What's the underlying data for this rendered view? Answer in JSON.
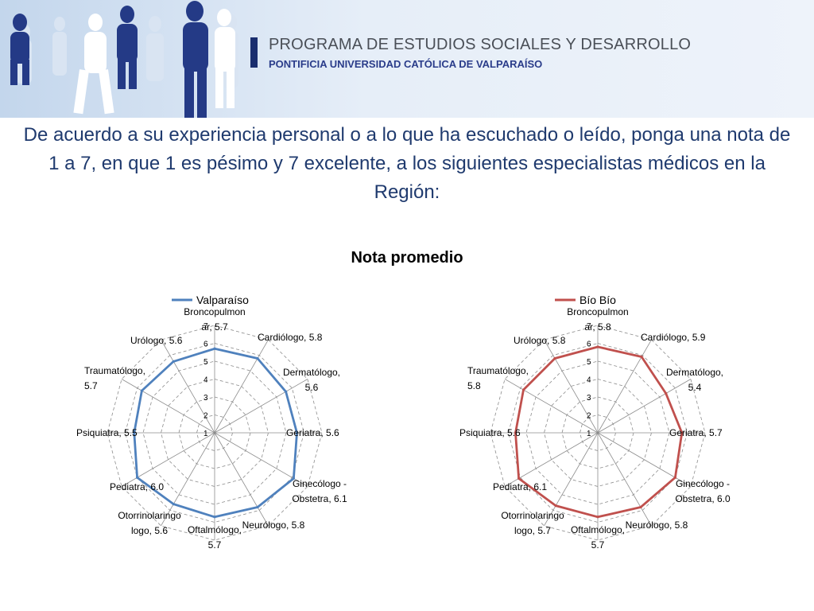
{
  "header": {
    "org_line1": "PROGRAMA DE ESTUDIOS SOCIALES Y DESARROLLO",
    "org_line2": "PONTIFICIA UNIVERSIDAD CATÓLICA DE VALPARAÍSO"
  },
  "question": "De acuerdo a su experiencia personal o a lo que ha escuchado o leído, ponga una nota de 1 a 7, en que 1 es pésimo y 7 excelente, a los siguientes especialistas médicos en la Región:",
  "chart_title": "Nota promedio",
  "chart_data": [
    {
      "type": "radar",
      "series": [
        {
          "name": "Valparaíso",
          "color": "#4f81bd",
          "values": [
            5.7,
            5.8,
            5.6,
            5.6,
            6.1,
            5.8,
            5.7,
            5.6,
            6.0,
            5.5,
            5.7,
            5.6
          ]
        }
      ],
      "categories": [
        "Broncopulmonar",
        "Cardiólogo",
        "Dermatólogo",
        "Geriatra",
        "Ginecólogo - Obstetra",
        "Neurólogo",
        "Oftalmólogo",
        "Otorrinolaringologo",
        "Pediatra",
        "Psiquiatra",
        "Traumatólogo",
        "Urólogo"
      ],
      "data_labels": [
        [
          "Broncopulmon",
          "ar, 5.7"
        ],
        [
          "Cardiólogo, 5.8"
        ],
        [
          "Dermatólogo,",
          "5.6"
        ],
        [
          "Geriatra, 5.6"
        ],
        [
          "Ginecólogo -",
          "Obstetra, 6.1"
        ],
        [
          "Neurólogo, 5.8"
        ],
        [
          "Oftalmólogo,",
          "5.7"
        ],
        [
          "Otorrinolaringo",
          "logo, 5.6"
        ],
        [
          "Pediatra, 6.0"
        ],
        [
          "Psiquiatra, 5.5"
        ],
        [
          "Traumatólogo,",
          "5.7"
        ],
        [
          "Urólogo, 5.6"
        ]
      ],
      "ticks": [
        "1",
        "2",
        "3",
        "4",
        "5",
        "6",
        "7"
      ],
      "rmin": 1,
      "rmax": 7,
      "legend_position": "top"
    },
    {
      "type": "radar",
      "series": [
        {
          "name": "Bío Bío",
          "color": "#c0504d",
          "values": [
            5.8,
            5.9,
            5.4,
            5.7,
            6.0,
            5.8,
            5.7,
            5.7,
            6.1,
            5.6,
            5.8,
            5.8
          ]
        }
      ],
      "categories": [
        "Broncopulmonar",
        "Cardiólogo",
        "Dermatólogo",
        "Geriatra",
        "Ginecólogo - Obstetra",
        "Neurólogo",
        "Oftalmólogo",
        "Otorrinolaringologo",
        "Pediatra",
        "Psiquiatra",
        "Traumatólogo",
        "Urólogo"
      ],
      "data_labels": [
        [
          "Broncopulmon",
          "ar, 5.8"
        ],
        [
          "Cardiólogo, 5.9"
        ],
        [
          "Dermatólogo,",
          "5.4"
        ],
        [
          "Geriatra, 5.7"
        ],
        [
          "Ginecólogo -",
          "Obstetra, 6.0"
        ],
        [
          "Neurólogo, 5.8"
        ],
        [
          "Oftalmólogo,",
          "5.7"
        ],
        [
          "Otorrinolaringo",
          "logo, 5.7"
        ],
        [
          "Pediatra, 6.1"
        ],
        [
          "Psiquiatra, 5.6"
        ],
        [
          "Traumatólogo,",
          "5.8"
        ],
        [
          "Urólogo, 5.8"
        ]
      ],
      "ticks": [
        "1",
        "2",
        "3",
        "4",
        "5",
        "6",
        "7"
      ],
      "rmin": 1,
      "rmax": 7,
      "legend_position": "top"
    }
  ]
}
